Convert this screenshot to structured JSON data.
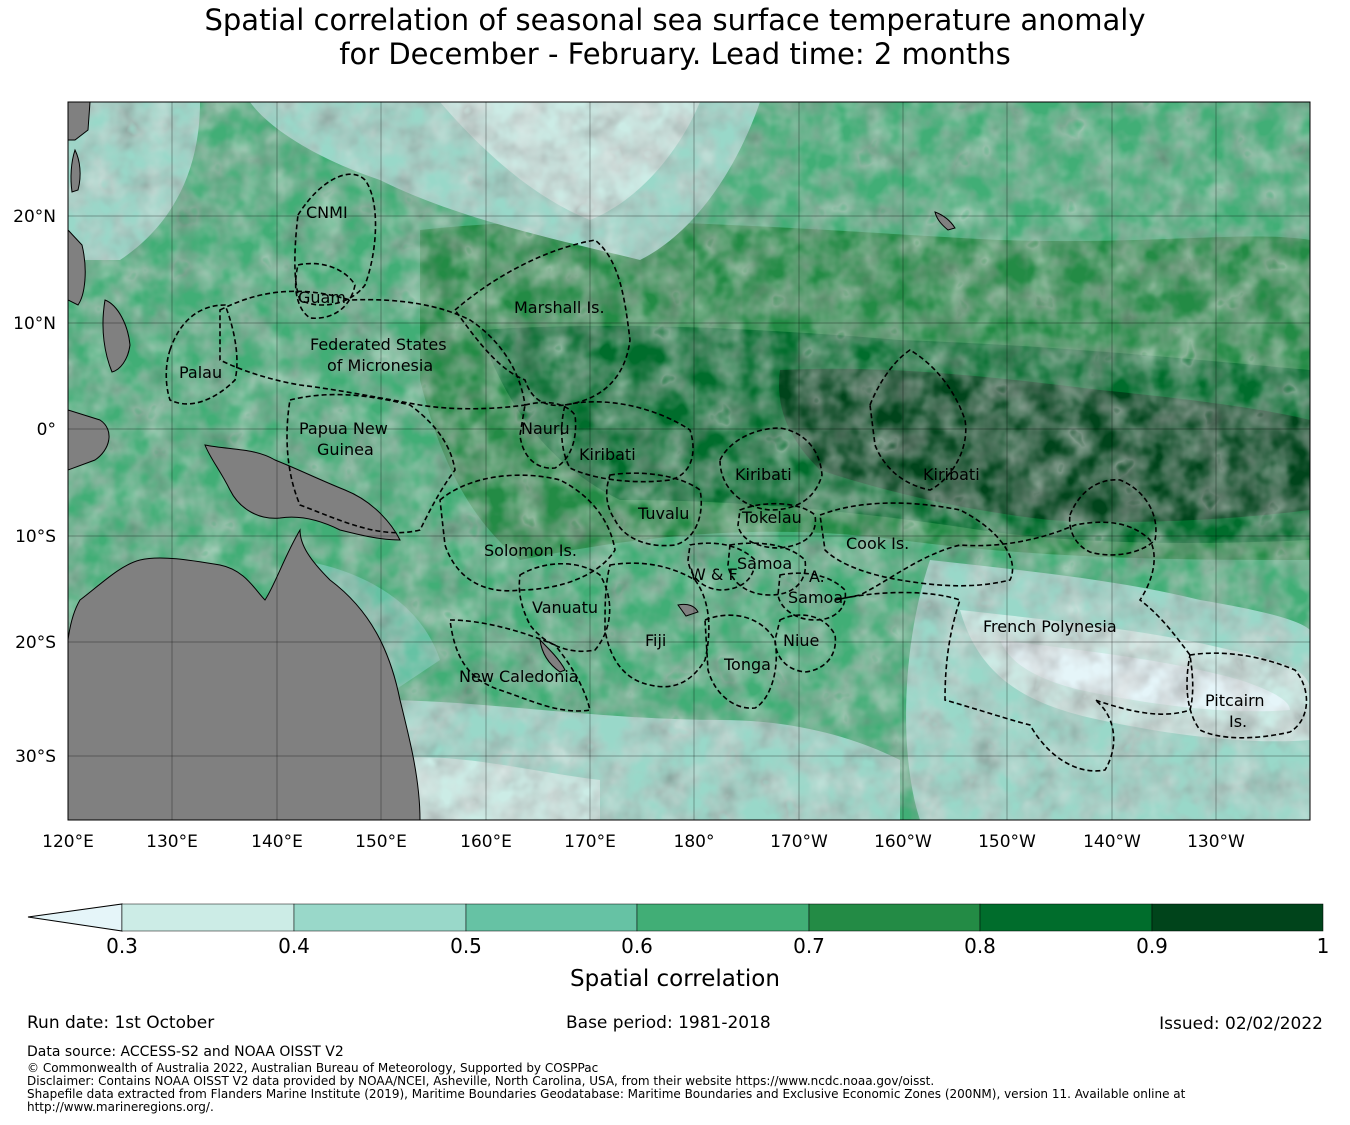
{
  "title": {
    "line1": "Spatial correlation of seasonal sea surface temperature anomaly",
    "line2": "for December - February. Lead time: 2 months"
  },
  "map": {
    "lon_ticks": [
      "120°E",
      "130°E",
      "140°E",
      "150°E",
      "160°E",
      "170°E",
      "180°",
      "170°W",
      "160°W",
      "150°W",
      "140°W",
      "130°W"
    ],
    "lat_ticks": [
      "20°N",
      "10°N",
      "0°",
      "10°S",
      "20°S",
      "30°S"
    ],
    "regions": [
      "CNMI",
      "Guam",
      "Marshall Is.",
      "Federated States",
      "of Micronesia",
      "Palau",
      "Papua New",
      "Guinea",
      "Nauru",
      "Kiribati",
      "Kiribati",
      "Kiribati",
      "Tuvalu",
      "Tokelau",
      "Cook Is.",
      "Solomon Is.",
      "Samoa",
      "W & F",
      "A.",
      "Samoa",
      "Vanuatu",
      "Fiji",
      "Niue",
      "Tonga",
      "New Caledonia",
      "French Polynesia",
      "Pitcairn",
      "Is."
    ],
    "colors": {
      "land": "#808080",
      "ocean_lowest": "#e5f5f9",
      "boundary": "#000000"
    }
  },
  "colorbar": {
    "label": "Spatial correlation",
    "ticks": [
      "0.3",
      "0.4",
      "0.5",
      "0.6",
      "0.7",
      "0.8",
      "0.9",
      "1"
    ],
    "colors": [
      "#e5f5f9",
      "#ccece6",
      "#99d8c9",
      "#66c2a4",
      "#41ae76",
      "#238b45",
      "#006d2c",
      "#00441b"
    ]
  },
  "footer": {
    "run_date": "Run date: 1st October",
    "base_period": "Base period: 1981-2018",
    "issued": "Issued: 02/02/2022",
    "data_source": "Data source: ACCESS-S2 and NOAA OISST V2",
    "copyright": "© Commonwealth of Australia 2022, Australian Bureau of Meteorology, Supported by COSPPac",
    "disclaimer": "Disclaimer: Contains NOAA OISST V2 data provided by NOAA/NCEI, Asheville, North Carolina, USA, from their website https://www.ncdc.noaa.gov/oisst.",
    "shapefile_1": "Shapefile data extracted from Flanders Marine Institute (2019), Maritime Boundaries Geodatabase: Maritime Boundaries and Exclusive Economic Zones (200NM), version 11. Available online at",
    "shapefile_2": "http://www.marineregions.org/."
  }
}
